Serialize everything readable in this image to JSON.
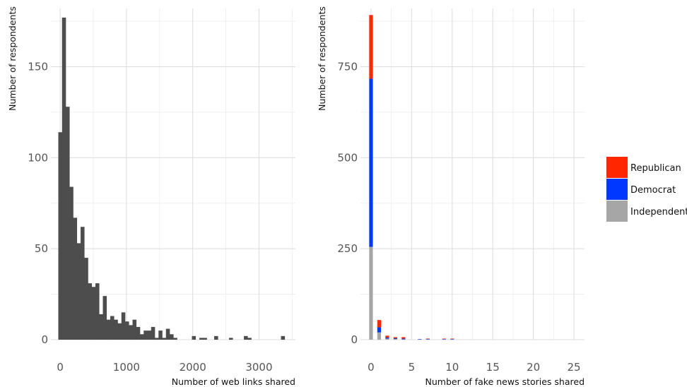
{
  "chart_data": [
    {
      "type": "bar",
      "subtype": "histogram",
      "xlabel": "Number of web links shared",
      "ylabel": "Number of respondents",
      "xlim": [
        -140,
        3550
      ],
      "ylim": [
        0,
        182
      ],
      "x_ticks": [
        0,
        1000,
        2000,
        3000
      ],
      "y_ticks": [
        0,
        50,
        100,
        150
      ],
      "bin_width": 56,
      "bar_color": "#4d4d4d",
      "grid": true,
      "series": [
        {
          "bins_start": [
            -28,
            28,
            84,
            140,
            196,
            252,
            308,
            364,
            420,
            476,
            532,
            588,
            644,
            700,
            756,
            812,
            868,
            924,
            980,
            1036,
            1092,
            1148,
            1204,
            1260,
            1316,
            1372,
            1428,
            1484,
            1540,
            1596,
            1652,
            1708,
            1764,
            1820,
            1876,
            1932,
            1988,
            2044,
            2100,
            2156,
            2212,
            2268,
            2324,
            2380,
            2436,
            2492,
            2548,
            2604,
            2660,
            2716,
            2772,
            2828,
            2884,
            2940,
            2996,
            3052,
            3108,
            3164,
            3220,
            3276,
            3332
          ],
          "counts": [
            114,
            177,
            128,
            84,
            67,
            53,
            62,
            45,
            31,
            29,
            31,
            14,
            24,
            11,
            13,
            11,
            9,
            15,
            10,
            8,
            11,
            7,
            3,
            5,
            5,
            7,
            1,
            5,
            1,
            6,
            3,
            1,
            0,
            0,
            0,
            0,
            2,
            0,
            1,
            1,
            0,
            0,
            2,
            0,
            0,
            0,
            1,
            0,
            0,
            0,
            2,
            1,
            0,
            0,
            0,
            0,
            0,
            0,
            0,
            0,
            2
          ]
        }
      ]
    },
    {
      "type": "bar",
      "subtype": "stacked",
      "xlabel": "Number of fake news stories shared",
      "ylabel": "Number of respondents",
      "xlim": [
        -1.3,
        26.3
      ],
      "ylim": [
        0,
        910
      ],
      "x_ticks": [
        0,
        5,
        10,
        15,
        20,
        25
      ],
      "y_ticks": [
        0,
        250,
        500,
        750
      ],
      "bar_width": 0.45,
      "legend_position": "right",
      "grid": true,
      "x": [
        0,
        1,
        2,
        3,
        4,
        5,
        6,
        7,
        8,
        9,
        10
      ],
      "series": [
        {
          "name": "Independent",
          "color": "#a6a6a6",
          "values": [
            255,
            20,
            3,
            2,
            1,
            0,
            1,
            1,
            0,
            1,
            1
          ]
        },
        {
          "name": "Democrat",
          "color": "#0038ff",
          "values": [
            462,
            14,
            3,
            2,
            2,
            0,
            1,
            1,
            0,
            1,
            1
          ]
        },
        {
          "name": "Republican",
          "color": "#ff2600",
          "values": [
            175,
            20,
            5,
            3,
            4,
            0,
            0,
            1,
            0,
            1,
            1
          ]
        }
      ],
      "legend": [
        "Republican",
        "Democrat",
        "Independent"
      ]
    }
  ]
}
